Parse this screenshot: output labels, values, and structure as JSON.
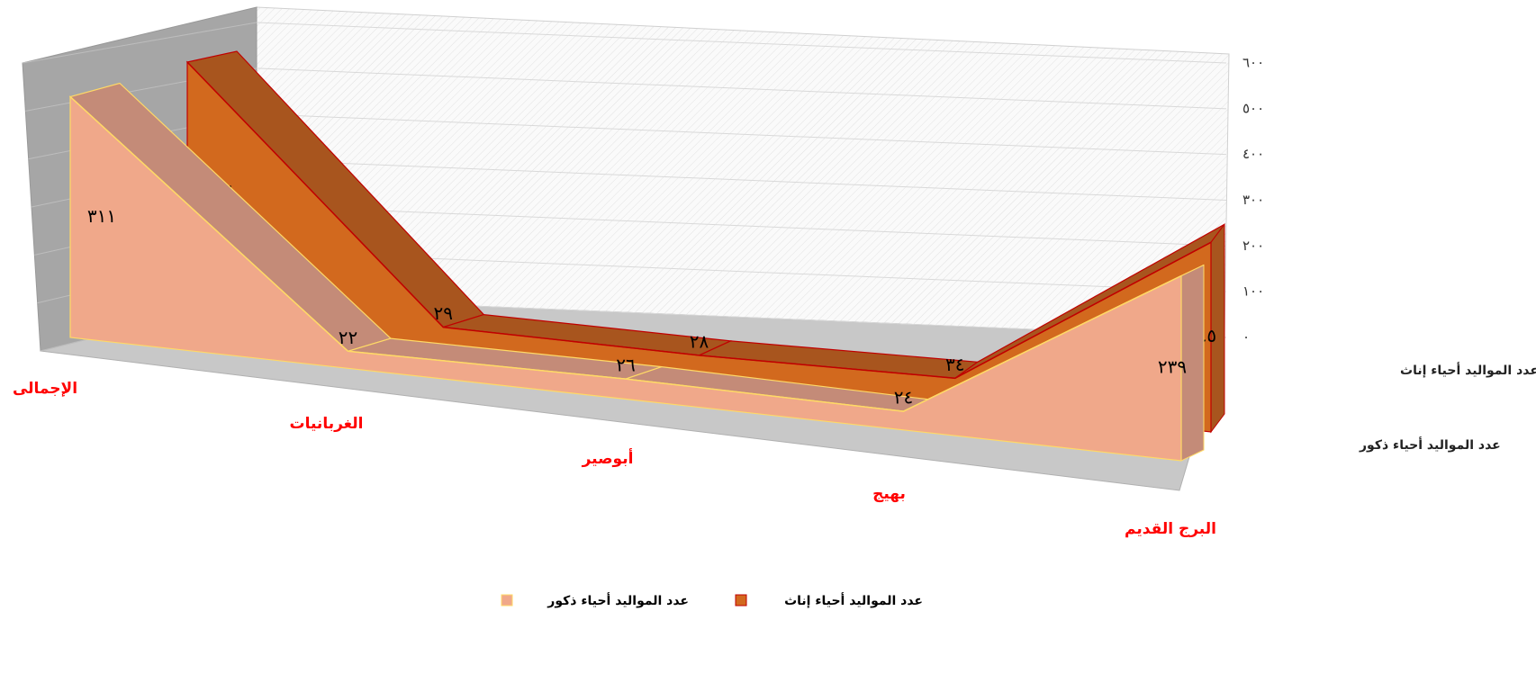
{
  "chart_data": {
    "type": "area3d",
    "categories": [
      "الإجمالى",
      "الغربانيات",
      "أبوصير",
      "بهيج",
      "البرج القديم"
    ],
    "series": [
      {
        "name": "عدد المواليد أحياء إناث",
        "color": "#d2691e",
        "values": [
          336,
          29,
          28,
          34,
          245
        ],
        "value_labels": [
          "٣٣٦",
          "٢٩",
          "٢٨",
          "٣٤",
          "٢٤٥"
        ]
      },
      {
        "name": "عدد المواليد أحياء ذكور",
        "color": "#f0a88a",
        "values": [
          311,
          22,
          26,
          24,
          239
        ],
        "value_labels": [
          "٣١١",
          "٢٢",
          "٢٦",
          "٢٤",
          "٢٣٩"
        ]
      }
    ],
    "ylim": [
      0,
      600
    ],
    "yticks": [
      {
        "value": 0,
        "label": "٠"
      },
      {
        "value": 100,
        "label": "١٠٠"
      },
      {
        "value": 200,
        "label": "٢٠٠"
      },
      {
        "value": 300,
        "label": "٣٠٠"
      },
      {
        "value": 400,
        "label": "٤٠٠"
      },
      {
        "value": 500,
        "label": "٥٠٠"
      },
      {
        "value": 600,
        "label": "٦٠٠"
      }
    ],
    "grid": true
  }
}
